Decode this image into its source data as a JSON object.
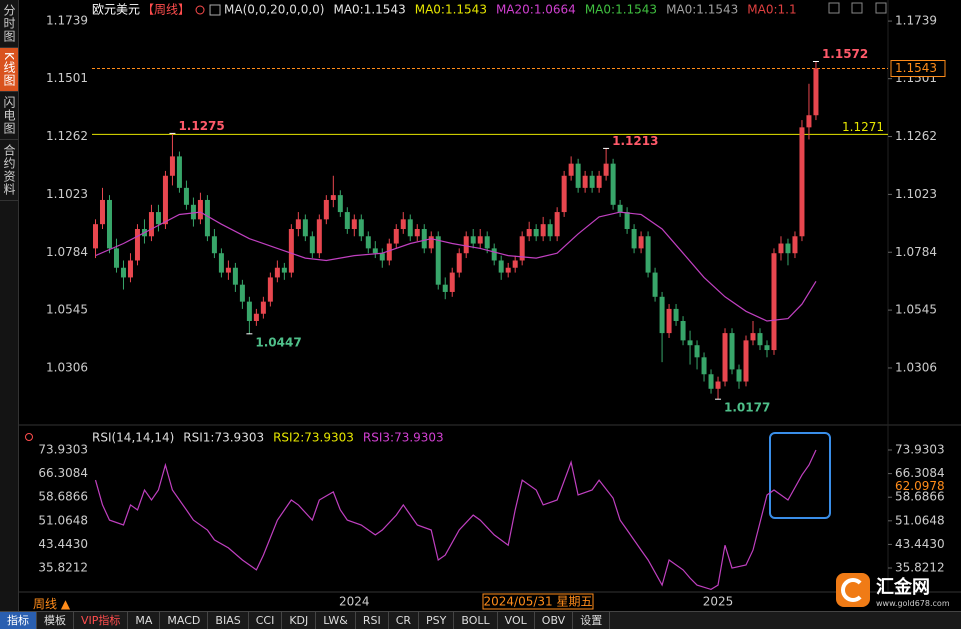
{
  "sidebar": [
    "分时图",
    "K线图",
    "闪电图",
    "合约资料"
  ],
  "toolbar": [
    "指标",
    "模板",
    "VIP指标",
    "MA",
    "MACD",
    "BIAS",
    "CCI",
    "KDJ",
    "LW&",
    "RSI",
    "CR",
    "PSY",
    "BOLL",
    "VOL",
    "OBV",
    "设置"
  ],
  "period_switch": "周线 ▲",
  "logo": {
    "name": "汇金网",
    "url": "www.gold678.com"
  },
  "chart_data": [
    {
      "type": "candlestick",
      "title": "欧元美元",
      "period": "【周线】",
      "legend": [
        {
          "text": "MA(0,0,20,0,0,0)",
          "color": "#dddddd"
        },
        {
          "text": "MA0:1.1543",
          "color": "#e6e6e6"
        },
        {
          "text": "MA0:1.1543",
          "color": "#e6e600"
        },
        {
          "text": "MA20:1.0664",
          "color": "#d040d0"
        },
        {
          "text": "MA0:1.1543",
          "color": "#40c040"
        },
        {
          "text": "MA0:1.1543",
          "color": "#a0a0a0"
        },
        {
          "text": "MA0:1.1",
          "color": "#e04040"
        }
      ],
      "up_color": "#e8474f",
      "down_color": "#38a66a",
      "xlim": [
        -0.5,
        113.3
      ],
      "ylim": [
        1.0153,
        1.1793
      ],
      "yticks": [
        1.1739,
        1.1501,
        1.1262,
        1.1023,
        1.0784,
        1.0545,
        1.0306
      ],
      "candles": [
        [
          1.08,
          1.092,
          1.076,
          1.09
        ],
        [
          1.09,
          1.105,
          1.088,
          1.1
        ],
        [
          1.1,
          1.102,
          1.078,
          1.08
        ],
        [
          1.08,
          1.084,
          1.07,
          1.072
        ],
        [
          1.072,
          1.075,
          1.063,
          1.068
        ],
        [
          1.068,
          1.078,
          1.066,
          1.075
        ],
        [
          1.075,
          1.09,
          1.073,
          1.088
        ],
        [
          1.088,
          1.092,
          1.082,
          1.085
        ],
        [
          1.085,
          1.098,
          1.083,
          1.095
        ],
        [
          1.095,
          1.098,
          1.087,
          1.09
        ],
        [
          1.09,
          1.112,
          1.088,
          1.11
        ],
        [
          1.11,
          1.1275,
          1.106,
          1.118
        ],
        [
          1.118,
          1.12,
          1.103,
          1.105
        ],
        [
          1.105,
          1.108,
          1.096,
          1.098
        ],
        [
          1.098,
          1.101,
          1.089,
          1.092
        ],
        [
          1.092,
          1.103,
          1.09,
          1.1
        ],
        [
          1.1,
          1.102,
          1.083,
          1.085
        ],
        [
          1.085,
          1.088,
          1.076,
          1.078
        ],
        [
          1.078,
          1.08,
          1.068,
          1.07
        ],
        [
          1.07,
          1.075,
          1.067,
          1.072
        ],
        [
          1.072,
          1.074,
          1.062,
          1.065
        ],
        [
          1.065,
          1.067,
          1.055,
          1.058
        ],
        [
          1.058,
          1.06,
          1.0447,
          1.05
        ],
        [
          1.05,
          1.055,
          1.048,
          1.053
        ],
        [
          1.053,
          1.06,
          1.051,
          1.058
        ],
        [
          1.058,
          1.07,
          1.056,
          1.068
        ],
        [
          1.068,
          1.075,
          1.066,
          1.072
        ],
        [
          1.072,
          1.074,
          1.067,
          1.07
        ],
        [
          1.07,
          1.09,
          1.068,
          1.088
        ],
        [
          1.088,
          1.095,
          1.085,
          1.092
        ],
        [
          1.092,
          1.094,
          1.083,
          1.085
        ],
        [
          1.085,
          1.087,
          1.076,
          1.078
        ],
        [
          1.078,
          1.094,
          1.076,
          1.092
        ],
        [
          1.092,
          1.102,
          1.09,
          1.1
        ],
        [
          1.1,
          1.11,
          1.097,
          1.102
        ],
        [
          1.102,
          1.104,
          1.093,
          1.095
        ],
        [
          1.095,
          1.097,
          1.086,
          1.088
        ],
        [
          1.088,
          1.094,
          1.085,
          1.092
        ],
        [
          1.092,
          1.094,
          1.083,
          1.085
        ],
        [
          1.085,
          1.087,
          1.078,
          1.08
        ],
        [
          1.08,
          1.083,
          1.076,
          1.078
        ],
        [
          1.078,
          1.08,
          1.072,
          1.075
        ],
        [
          1.075,
          1.084,
          1.073,
          1.082
        ],
        [
          1.082,
          1.09,
          1.08,
          1.088
        ],
        [
          1.088,
          1.095,
          1.086,
          1.092
        ],
        [
          1.092,
          1.094,
          1.083,
          1.085
        ],
        [
          1.085,
          1.09,
          1.083,
          1.088
        ],
        [
          1.088,
          1.09,
          1.078,
          1.08
        ],
        [
          1.08,
          1.087,
          1.078,
          1.085
        ],
        [
          1.085,
          1.087,
          1.063,
          1.065
        ],
        [
          1.065,
          1.068,
          1.059,
          1.062
        ],
        [
          1.062,
          1.072,
          1.06,
          1.07
        ],
        [
          1.07,
          1.08,
          1.068,
          1.078
        ],
        [
          1.078,
          1.087,
          1.076,
          1.085
        ],
        [
          1.085,
          1.088,
          1.08,
          1.082
        ],
        [
          1.082,
          1.088,
          1.08,
          1.085
        ],
        [
          1.085,
          1.087,
          1.078,
          1.08
        ],
        [
          1.08,
          1.082,
          1.073,
          1.075
        ],
        [
          1.075,
          1.077,
          1.067,
          1.07
        ],
        [
          1.07,
          1.074,
          1.068,
          1.072
        ],
        [
          1.072,
          1.077,
          1.07,
          1.075
        ],
        [
          1.075,
          1.087,
          1.073,
          1.085
        ],
        [
          1.085,
          1.091,
          1.083,
          1.088
        ],
        [
          1.088,
          1.09,
          1.083,
          1.085
        ],
        [
          1.085,
          1.093,
          1.083,
          1.09
        ],
        [
          1.09,
          1.092,
          1.083,
          1.085
        ],
        [
          1.085,
          1.097,
          1.083,
          1.095
        ],
        [
          1.095,
          1.112,
          1.093,
          1.11
        ],
        [
          1.11,
          1.118,
          1.108,
          1.115
        ],
        [
          1.115,
          1.117,
          1.103,
          1.105
        ],
        [
          1.105,
          1.112,
          1.103,
          1.11
        ],
        [
          1.11,
          1.112,
          1.103,
          1.105
        ],
        [
          1.105,
          1.112,
          1.103,
          1.11
        ],
        [
          1.11,
          1.1213,
          1.108,
          1.115
        ],
        [
          1.115,
          1.117,
          1.096,
          1.098
        ],
        [
          1.098,
          1.1,
          1.093,
          1.095
        ],
        [
          1.095,
          1.097,
          1.086,
          1.088
        ],
        [
          1.088,
          1.09,
          1.078,
          1.08
        ],
        [
          1.08,
          1.087,
          1.078,
          1.085
        ],
        [
          1.085,
          1.087,
          1.068,
          1.07
        ],
        [
          1.07,
          1.072,
          1.058,
          1.06
        ],
        [
          1.06,
          1.062,
          1.033,
          1.045
        ],
        [
          1.045,
          1.057,
          1.043,
          1.055
        ],
        [
          1.055,
          1.057,
          1.048,
          1.05
        ],
        [
          1.05,
          1.052,
          1.04,
          1.042
        ],
        [
          1.042,
          1.046,
          1.032,
          1.04
        ],
        [
          1.04,
          1.042,
          1.03,
          1.035
        ],
        [
          1.035,
          1.037,
          1.025,
          1.028
        ],
        [
          1.028,
          1.03,
          1.02,
          1.022
        ],
        [
          1.022,
          1.027,
          1.0177,
          1.025
        ],
        [
          1.025,
          1.047,
          1.023,
          1.045
        ],
        [
          1.045,
          1.047,
          1.028,
          1.03
        ],
        [
          1.03,
          1.032,
          1.022,
          1.025
        ],
        [
          1.025,
          1.044,
          1.023,
          1.042
        ],
        [
          1.042,
          1.05,
          1.04,
          1.045
        ],
        [
          1.045,
          1.047,
          1.038,
          1.04
        ],
        [
          1.04,
          1.042,
          1.035,
          1.038
        ],
        [
          1.038,
          1.08,
          1.036,
          1.078
        ],
        [
          1.078,
          1.085,
          1.075,
          1.082
        ],
        [
          1.082,
          1.084,
          1.073,
          1.078
        ],
        [
          1.078,
          1.087,
          1.076,
          1.085
        ],
        [
          1.085,
          1.133,
          1.083,
          1.13
        ],
        [
          1.13,
          1.148,
          1.125,
          1.135
        ],
        [
          1.135,
          1.1572,
          1.133,
          1.1543
        ]
      ],
      "series": [
        {
          "name": "MA20",
          "color": "#c040c0",
          "x": [
            0,
            4,
            8,
            12,
            15,
            18,
            22,
            26,
            30,
            33,
            37,
            41,
            45,
            48,
            51,
            55,
            59,
            63,
            66,
            69,
            72,
            75,
            78,
            81,
            84,
            87,
            90,
            93,
            96,
            99,
            101,
            103
          ],
          "values": [
            1.077,
            1.082,
            1.088,
            1.094,
            1.095,
            1.09,
            1.084,
            1.08,
            1.076,
            1.075,
            1.077,
            1.078,
            1.082,
            1.084,
            1.082,
            1.08,
            1.077,
            1.076,
            1.078,
            1.086,
            1.093,
            1.095,
            1.094,
            1.088,
            1.078,
            1.068,
            1.06,
            1.054,
            1.05,
            1.051,
            1.057,
            1.0664
          ]
        }
      ],
      "annotations": [
        {
          "x": 11,
          "value": 1.1275,
          "color": "#ff5a6a"
        },
        {
          "x": 73,
          "value": 1.1213,
          "color": "#ff5a6a"
        },
        {
          "x": 103,
          "value": 1.1572,
          "color": "#ff5a6a"
        },
        {
          "x": 22,
          "value": 1.0447,
          "color": "#4fc08a"
        },
        {
          "x": 89,
          "value": 1.0177,
          "color": "#4fc08a"
        }
      ],
      "hline": {
        "value": 1.1271,
        "color": "#e6e600"
      },
      "last_price": {
        "value": 1.1543,
        "color": "#ff8c1a"
      }
    },
    {
      "type": "line",
      "legend": [
        {
          "text": "RSI(14,14,14)",
          "color": "#dddddd"
        },
        {
          "text": "RSI1:73.9303",
          "color": "#dddddd"
        },
        {
          "text": "RSI2:73.9303",
          "color": "#e6e600"
        },
        {
          "text": "RSI3:73.9303",
          "color": "#d040d0"
        }
      ],
      "xlim": [
        -0.5,
        113.3
      ],
      "ylim": [
        28.72,
        77.16
      ],
      "yticks": [
        73.9303,
        66.3084,
        58.6866,
        51.0648,
        {
          "value": 43.443,
          "label": "43.4430"
        },
        35.8212
      ],
      "xticks": [
        {
          "value": 37,
          "label": "2024"
        },
        {
          "value": 89,
          "label": "2025"
        }
      ],
      "cursor_date": "2024/05/31 星期五",
      "cursor_value": {
        "value": 62.0978,
        "color": "#ff8c1a"
      },
      "series": [
        {
          "name": "RSI1",
          "color": "#c040c0",
          "x": [
            0,
            1,
            2,
            4,
            5,
            6,
            7,
            8,
            9,
            10,
            11,
            13,
            14,
            16,
            17,
            19,
            21,
            23,
            24,
            26,
            28,
            29,
            31,
            32,
            34,
            35,
            36,
            38,
            40,
            41,
            43,
            44,
            46,
            48,
            49,
            50,
            52,
            54,
            55,
            57,
            59,
            60,
            61,
            63,
            64,
            66,
            68,
            69,
            71,
            72,
            74,
            75,
            76,
            78,
            79,
            81,
            82,
            84,
            85,
            86,
            88,
            89,
            90,
            91,
            93,
            94,
            96,
            97,
            99,
            101,
            102,
            103
          ],
          "values": [
            64.2,
            56.2,
            51.3,
            49.7,
            56.2,
            54.6,
            61,
            57.8,
            61,
            69.1,
            61,
            54.6,
            51.3,
            48.1,
            44.9,
            42.3,
            38.4,
            35.2,
            40,
            51.3,
            57.8,
            56.2,
            51.3,
            57.8,
            60.4,
            54.6,
            51.3,
            49.7,
            46.5,
            48.1,
            52.9,
            56.2,
            49.7,
            48.1,
            38.4,
            40,
            48.1,
            52.9,
            51.3,
            46.5,
            43.2,
            54.6,
            64.2,
            61,
            56.2,
            57.8,
            70,
            59.4,
            61,
            64.2,
            58.4,
            51.3,
            48.1,
            41.6,
            38.4,
            30.3,
            38.4,
            35.2,
            32.6,
            30.3,
            28.9,
            30.3,
            43.2,
            35.8,
            36.8,
            41.6,
            59.4,
            61,
            57.8,
            65.9,
            69.1,
            73.9303
          ]
        }
      ]
    }
  ]
}
